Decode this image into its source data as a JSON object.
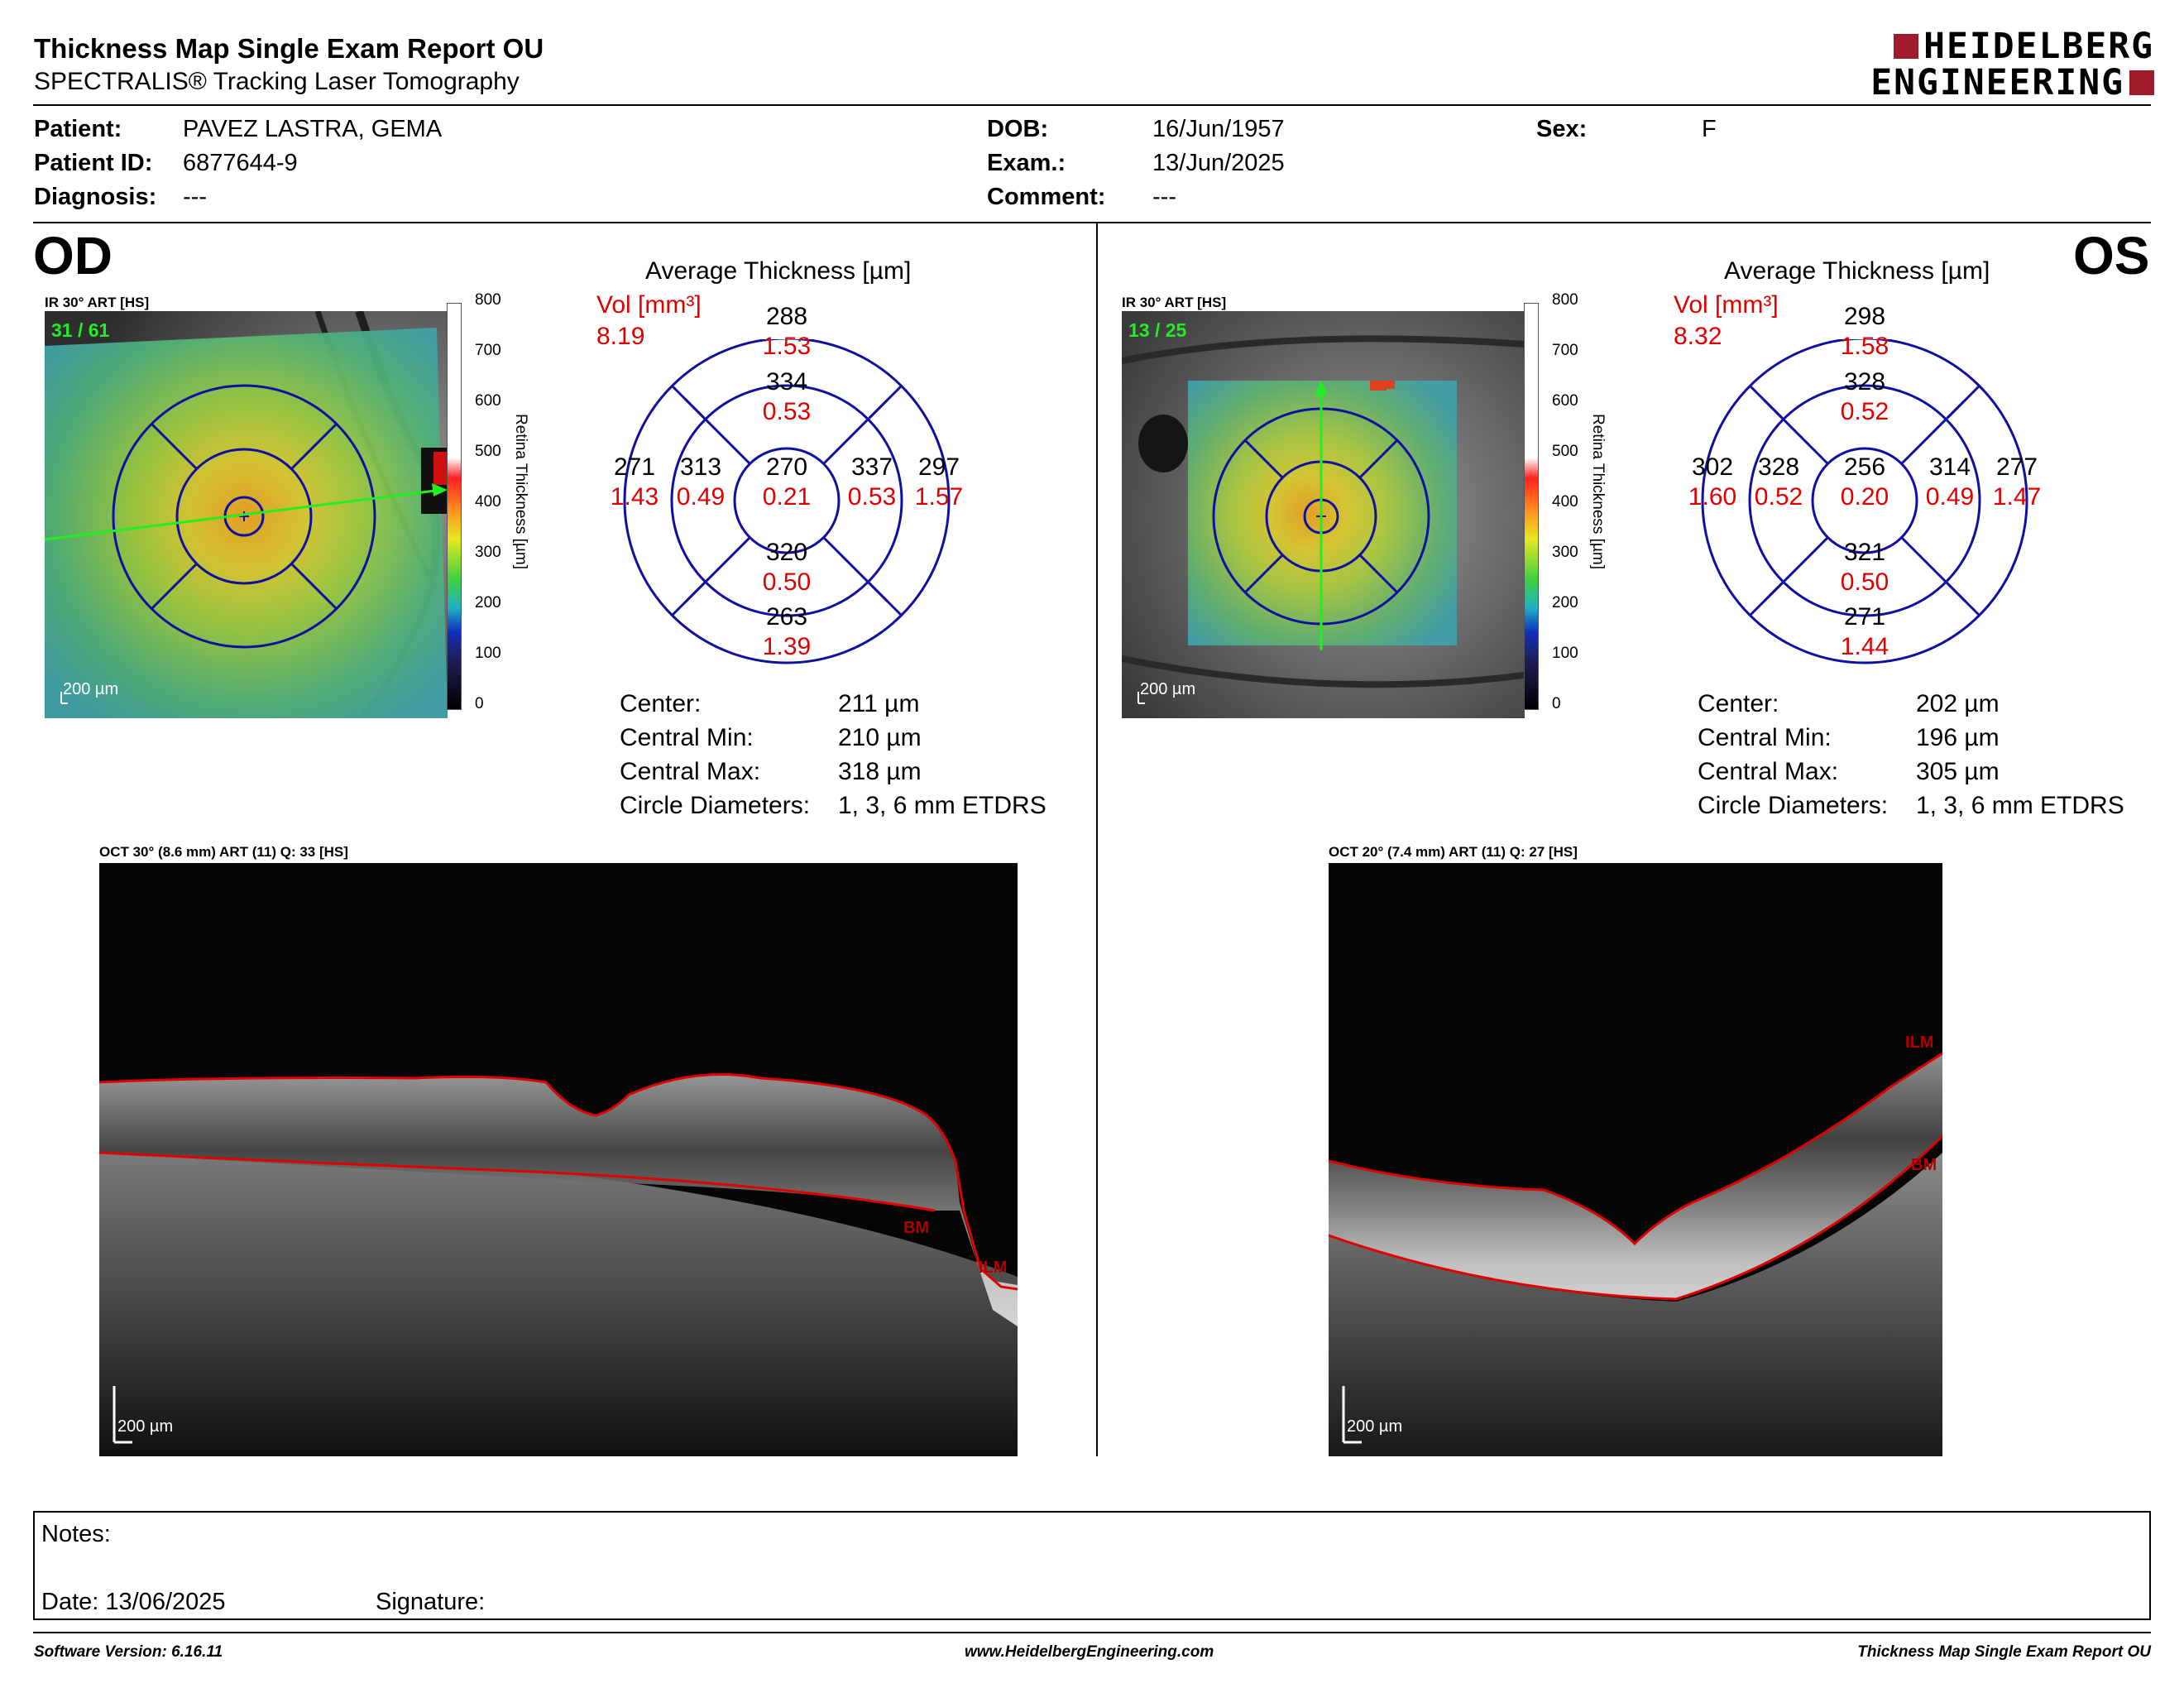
{
  "header": {
    "title": "Thickness Map Single Exam Report OU",
    "subtitle": "SPECTRALIS® Tracking Laser Tomography",
    "logo_line1": "HEIDELBERG",
    "logo_line2": "ENGINEERING",
    "brand_color": "#a01b2c"
  },
  "patient": {
    "patient_label": "Patient:",
    "patient_value": "PAVEZ LASTRA, GEMA",
    "id_label": "Patient ID:",
    "id_value": "6877644-9",
    "diagnosis_label": "Diagnosis:",
    "diagnosis_value": "---",
    "dob_label": "DOB:",
    "dob_value": "16/Jun/1957",
    "exam_label": "Exam.:",
    "exam_value": "13/Jun/2025",
    "comment_label": "Comment:",
    "comment_value": "---",
    "sex_label": "Sex:",
    "sex_value": "F"
  },
  "colorbar": {
    "ticks": [
      "800",
      "700",
      "600",
      "500",
      "400",
      "300",
      "200",
      "100",
      "0"
    ],
    "title": "Retina Thickness [µm]"
  },
  "od": {
    "eye_label": "OD",
    "fundus_caption": "IR 30° ART [HS]",
    "frame_count": "31 / 61",
    "fundus_scale": "200 µm",
    "avg_title": "Average Thickness [µm]",
    "vol_label": "Vol [mm³]",
    "vol_value": "8.19",
    "sectors": {
      "outer_sup": [
        "288",
        "1.53"
      ],
      "inner_sup": [
        "334",
        "0.53"
      ],
      "outer_temp": [
        "271",
        "1.43"
      ],
      "inner_temp": [
        "313",
        "0.49"
      ],
      "center": [
        "270",
        "0.21"
      ],
      "inner_nas": [
        "337",
        "0.53"
      ],
      "outer_nas": [
        "297",
        "1.57"
      ],
      "inner_inf": [
        "320",
        "0.50"
      ],
      "outer_inf": [
        "263",
        "1.39"
      ]
    },
    "stats": [
      {
        "label": "Center:",
        "value": "211 µm"
      },
      {
        "label": "Central Min:",
        "value": "210 µm"
      },
      {
        "label": "Central Max:",
        "value": "318 µm"
      },
      {
        "label": "Circle Diameters:",
        "value": "1, 3, 6 mm ETDRS"
      }
    ],
    "oct_caption": "OCT 30° (8.6 mm) ART (11) Q: 33 [HS]",
    "oct_scale": "200 µm",
    "oct_labels": {
      "bm": "BM",
      "ilm": "ILM"
    }
  },
  "os": {
    "eye_label": "OS",
    "fundus_caption": "IR 30° ART [HS]",
    "frame_count": "13 / 25",
    "fundus_scale": "200 µm",
    "avg_title": "Average Thickness [µm]",
    "vol_label": "Vol [mm³]",
    "vol_value": "8.32",
    "sectors": {
      "outer_sup": [
        "298",
        "1.58"
      ],
      "inner_sup": [
        "328",
        "0.52"
      ],
      "outer_temp": [
        "302",
        "1.60"
      ],
      "inner_temp": [
        "328",
        "0.52"
      ],
      "center": [
        "256",
        "0.20"
      ],
      "inner_nas": [
        "314",
        "0.49"
      ],
      "outer_nas": [
        "277",
        "1.47"
      ],
      "inner_inf": [
        "321",
        "0.50"
      ],
      "outer_inf": [
        "271",
        "1.44"
      ]
    },
    "stats": [
      {
        "label": "Center:",
        "value": "202 µm"
      },
      {
        "label": "Central Min:",
        "value": "196 µm"
      },
      {
        "label": "Central Max:",
        "value": "305 µm"
      },
      {
        "label": "Circle Diameters:",
        "value": "1, 3, 6 mm ETDRS"
      }
    ],
    "oct_caption": "OCT 20° (7.4 mm) ART (11) Q: 27 [HS]",
    "oct_scale": "200 µm",
    "oct_labels": {
      "bm": "BM",
      "ilm": "ILM"
    }
  },
  "notes": {
    "notes_label": "Notes:",
    "date_label": "Date: 13/06/2025",
    "signature_label": "Signature:"
  },
  "footer": {
    "software": "Software Version: 6.16.11",
    "url": "www.HeidelbergEngineering.com",
    "report_name": "Thickness Map Single Exam Report OU"
  },
  "colors": {
    "grid_blue": "#1010a0",
    "value_red": "#e00000",
    "segmentation_red": "#e00000",
    "frame_green": "#22ee22"
  }
}
